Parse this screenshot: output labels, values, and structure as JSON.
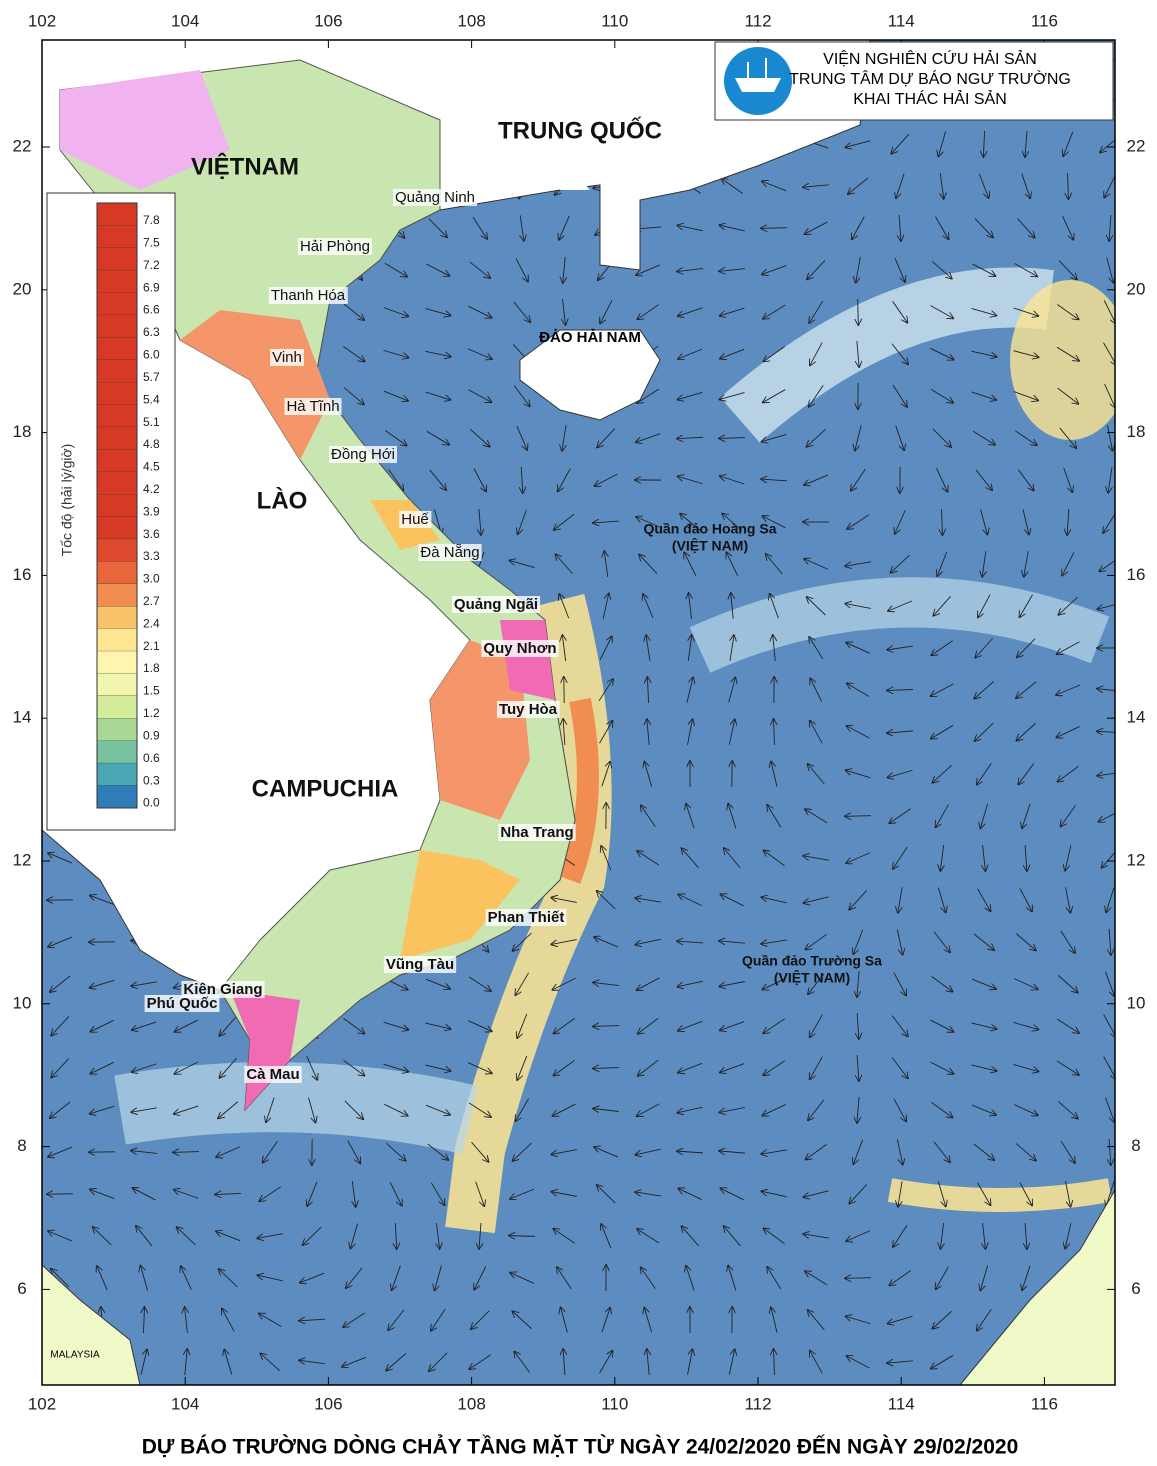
{
  "map": {
    "xticks": [
      102,
      104,
      106,
      108,
      110,
      112,
      114,
      116
    ],
    "yticks": [
      6,
      8,
      10,
      12,
      14,
      16,
      18,
      20,
      22
    ],
    "regions": [
      "VIỆTNAM",
      "TRUNG QUỐC",
      "LÀO",
      "CAMPUCHIA",
      "ĐẢO HẢI NAM",
      "MALAYSIA"
    ],
    "places": [
      "Quảng Ninh",
      "Hải Phòng",
      "Thanh Hóa",
      "Vinh",
      "Hà Tĩnh",
      "Đồng Hới",
      "Huế",
      "Đà Nẵng",
      "Quảng Ngãi",
      "Quy Nhơn",
      "Tuy Hòa",
      "Nha Trang",
      "Phan Thiết",
      "Vũng Tàu",
      "Kiên Giang",
      "Phú Quốc",
      "Cà Mau"
    ],
    "archipelagos": [
      [
        "Quần đảo Hoàng Sa",
        "(VIỆT NAM)"
      ],
      [
        "Quần đảo Trường Sa",
        "(VIỆT NAM)"
      ]
    ]
  },
  "legend": {
    "title": "Tốc độ (hải lý/giờ)",
    "labels": [
      "7.8",
      "7.5",
      "7.2",
      "6.9",
      "6.6",
      "6.3",
      "6.0",
      "5.7",
      "5.4",
      "5.1",
      "4.8",
      "4.5",
      "4.2",
      "3.9",
      "3.6",
      "3.3",
      "3.0",
      "2.7",
      "2.4",
      "2.1",
      "1.8",
      "1.5",
      "1.2",
      "0.9",
      "0.6",
      "0.3",
      "0.0"
    ],
    "colors": [
      "#d63a27",
      "#d63a27",
      "#d63a27",
      "#d63a27",
      "#d63a27",
      "#d63a27",
      "#d63a27",
      "#d63a27",
      "#d63a27",
      "#d63a27",
      "#d63a27",
      "#d63a27",
      "#d63a27",
      "#d63a27",
      "#d63a27",
      "#de4a2e",
      "#e8663a",
      "#f28d52",
      "#f9c36c",
      "#fde591",
      "#fff4b0",
      "#f2f7b0",
      "#d5ec9a",
      "#a9d896",
      "#78c2a0",
      "#4aa5b4",
      "#2f7db8"
    ]
  },
  "header": {
    "lines": [
      "VIỆN NGHIÊN CỨU HẢI SẢN",
      "TRUNG TÂM DỰ BÁO NGƯ TRƯỜNG",
      "KHAI THÁC HẢI SẢN"
    ]
  },
  "footer": {
    "title": "DỰ BÁO TRƯỜNG DÒNG CHẢY TẦNG MẶT TỪ NGÀY 24/02/2020 ĐẾN NGÀY 29/02/2020"
  }
}
